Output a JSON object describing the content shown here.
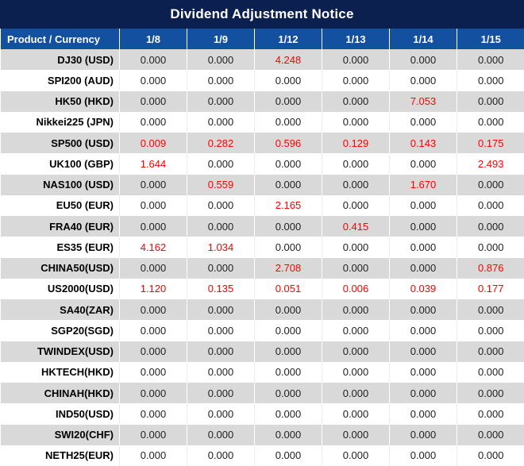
{
  "title": "Dividend Adjustment Notice",
  "colors": {
    "title_bg": "#0c2050",
    "header_bg": "#1450a0",
    "alt_row_bg": "#d9d9d9",
    "negative_highlight": "#ff0000"
  },
  "table": {
    "corner_header": "Product / Currency",
    "date_headers": [
      "1/8",
      "1/9",
      "1/12",
      "1/13",
      "1/14",
      "1/15"
    ],
    "rows": [
      {
        "product": "DJ30 (USD)",
        "values": [
          "0.000",
          "0.000",
          "4.248",
          "0.000",
          "0.000",
          "0.000"
        ],
        "red": [
          2
        ]
      },
      {
        "product": "SPI200 (AUD)",
        "values": [
          "0.000",
          "0.000",
          "0.000",
          "0.000",
          "0.000",
          "0.000"
        ],
        "red": []
      },
      {
        "product": "HK50 (HKD)",
        "values": [
          "0.000",
          "0.000",
          "0.000",
          "0.000",
          "7.053",
          "0.000"
        ],
        "red": [
          4
        ]
      },
      {
        "product": "Nikkei225 (JPN)",
        "values": [
          "0.000",
          "0.000",
          "0.000",
          "0.000",
          "0.000",
          "0.000"
        ],
        "red": []
      },
      {
        "product": "SP500 (USD)",
        "values": [
          "0.009",
          "0.282",
          "0.596",
          "0.129",
          "0.143",
          "0.175"
        ],
        "red": [
          0,
          1,
          2,
          3,
          4,
          5
        ]
      },
      {
        "product": "UK100 (GBP)",
        "values": [
          "1.644",
          "0.000",
          "0.000",
          "0.000",
          "0.000",
          "2.493"
        ],
        "red": [
          0,
          5
        ]
      },
      {
        "product": "NAS100 (USD)",
        "values": [
          "0.000",
          "0.559",
          "0.000",
          "0.000",
          "1.670",
          "0.000"
        ],
        "red": [
          1,
          4
        ]
      },
      {
        "product": "EU50 (EUR)",
        "values": [
          "0.000",
          "0.000",
          "2.165",
          "0.000",
          "0.000",
          "0.000"
        ],
        "red": [
          2
        ]
      },
      {
        "product": "FRA40 (EUR)",
        "values": [
          "0.000",
          "0.000",
          "0.000",
          "0.415",
          "0.000",
          "0.000"
        ],
        "red": [
          3
        ]
      },
      {
        "product": "ES35 (EUR)",
        "values": [
          "4.162",
          "1.034",
          "0.000",
          "0.000",
          "0.000",
          "0.000"
        ],
        "red": [
          0,
          1
        ]
      },
      {
        "product": "CHINA50(USD)",
        "values": [
          "0.000",
          "0.000",
          "2.708",
          "0.000",
          "0.000",
          "0.876"
        ],
        "red": [
          2,
          5
        ]
      },
      {
        "product": "US2000(USD)",
        "values": [
          "1.120",
          "0.135",
          "0.051",
          "0.006",
          "0.039",
          "0.177"
        ],
        "red": [
          0,
          1,
          2,
          3,
          4,
          5
        ]
      },
      {
        "product": "SA40(ZAR)",
        "values": [
          "0.000",
          "0.000",
          "0.000",
          "0.000",
          "0.000",
          "0.000"
        ],
        "red": []
      },
      {
        "product": "SGP20(SGD)",
        "values": [
          "0.000",
          "0.000",
          "0.000",
          "0.000",
          "0.000",
          "0.000"
        ],
        "red": []
      },
      {
        "product": "TWINDEX(USD)",
        "values": [
          "0.000",
          "0.000",
          "0.000",
          "0.000",
          "0.000",
          "0.000"
        ],
        "red": []
      },
      {
        "product": "HKTECH(HKD)",
        "values": [
          "0.000",
          "0.000",
          "0.000",
          "0.000",
          "0.000",
          "0.000"
        ],
        "red": []
      },
      {
        "product": "CHINAH(HKD)",
        "values": [
          "0.000",
          "0.000",
          "0.000",
          "0.000",
          "0.000",
          "0.000"
        ],
        "red": []
      },
      {
        "product": "IND50(USD)",
        "values": [
          "0.000",
          "0.000",
          "0.000",
          "0.000",
          "0.000",
          "0.000"
        ],
        "red": []
      },
      {
        "product": "SWI20(CHF)",
        "values": [
          "0.000",
          "0.000",
          "0.000",
          "0.000",
          "0.000",
          "0.000"
        ],
        "red": []
      },
      {
        "product": "NETH25(EUR)",
        "values": [
          "0.000",
          "0.000",
          "0.000",
          "0.000",
          "0.000",
          "0.000"
        ],
        "red": []
      }
    ]
  }
}
